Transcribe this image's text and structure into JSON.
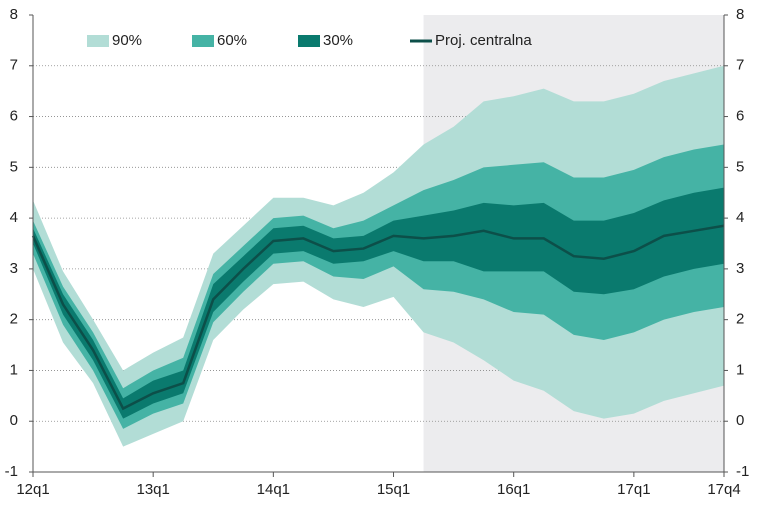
{
  "chart_data": {
    "type": "fan",
    "categories": [
      "12q1",
      null,
      null,
      null,
      "13q1",
      null,
      null,
      null,
      "14q1",
      null,
      null,
      null,
      "15q1",
      null,
      null,
      null,
      "16q1",
      null,
      null,
      null,
      "17q1",
      null,
      null,
      "17q4"
    ],
    "series": [
      {
        "name": "90%",
        "color": "#b2ddd6",
        "upper": [
          4.35,
          2.95,
          2.0,
          1.0,
          1.35,
          1.65,
          3.3,
          3.85,
          4.4,
          4.4,
          4.25,
          4.5,
          4.9,
          5.45,
          5.8,
          6.3,
          6.4,
          6.55,
          6.3,
          6.3,
          6.45,
          6.7,
          6.85,
          7.0
        ],
        "lower": [
          3.0,
          1.55,
          0.75,
          -0.5,
          -0.25,
          0.0,
          1.6,
          2.2,
          2.7,
          2.75,
          2.4,
          2.25,
          2.45,
          1.75,
          1.55,
          1.2,
          0.8,
          0.6,
          0.2,
          0.05,
          0.15,
          0.4,
          0.55,
          0.7
        ]
      },
      {
        "name": "60%",
        "color": "#45b3a5",
        "upper": [
          3.95,
          2.65,
          1.75,
          0.65,
          1.0,
          1.25,
          2.9,
          3.45,
          4.0,
          4.05,
          3.8,
          3.95,
          4.25,
          4.55,
          4.75,
          5.0,
          5.05,
          5.1,
          4.8,
          4.8,
          4.95,
          5.2,
          5.35,
          5.45
        ],
        "lower": [
          3.3,
          1.9,
          1.0,
          -0.15,
          0.15,
          0.35,
          1.95,
          2.55,
          3.1,
          3.15,
          2.85,
          2.8,
          3.05,
          2.6,
          2.55,
          2.4,
          2.15,
          2.1,
          1.7,
          1.6,
          1.75,
          2.0,
          2.15,
          2.25
        ]
      },
      {
        "name": "30%",
        "color": "#0a7a6e",
        "upper": [
          3.8,
          2.5,
          1.6,
          0.45,
          0.8,
          1.0,
          2.7,
          3.25,
          3.8,
          3.85,
          3.6,
          3.65,
          3.95,
          4.05,
          4.15,
          4.3,
          4.25,
          4.3,
          3.95,
          3.95,
          4.1,
          4.35,
          4.5,
          4.6
        ],
        "lower": [
          3.5,
          2.1,
          1.2,
          0.05,
          0.35,
          0.55,
          2.15,
          2.75,
          3.3,
          3.35,
          3.1,
          3.15,
          3.35,
          3.15,
          3.15,
          2.95,
          2.95,
          2.95,
          2.55,
          2.5,
          2.6,
          2.85,
          3.0,
          3.1
        ]
      },
      {
        "name": "Proj. centralna",
        "color": "#0c4f49",
        "values": [
          3.65,
          2.3,
          1.4,
          0.25,
          0.55,
          0.75,
          2.4,
          3.0,
          3.55,
          3.6,
          3.35,
          3.4,
          3.65,
          3.6,
          3.65,
          3.75,
          3.6,
          3.6,
          3.25,
          3.2,
          3.35,
          3.65,
          3.75,
          3.85
        ]
      }
    ],
    "shaded_from": 13,
    "shade_color": "#ececee",
    "ylim": [
      -1,
      8
    ],
    "yticks": [
      -1,
      0,
      1,
      2,
      3,
      4,
      5,
      6,
      7,
      8
    ],
    "grid": true
  }
}
